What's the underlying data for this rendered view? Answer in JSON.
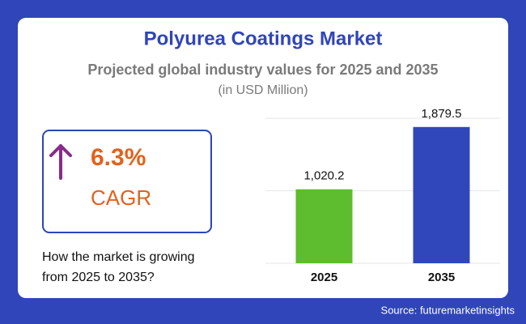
{
  "title": "Polyurea Coatings Market",
  "subtitle": "Projected global industry values for 2025 and 2035",
  "unit": "(in USD Million)",
  "cagr": {
    "value": "6.3%",
    "label": "CAGR"
  },
  "question": [
    "How the market is growing",
    "from 2025 to 2035?"
  ],
  "source": "Source: futuremarketinsights",
  "chart_data": {
    "type": "bar",
    "categories": [
      "2025",
      "2035"
    ],
    "values": [
      1020.2,
      1879.5
    ],
    "value_labels": [
      "1,020.2",
      "1,879.5"
    ],
    "colors": [
      "#5dbd2e",
      "#3047bb"
    ],
    "ylim": [
      0,
      2000
    ],
    "yticks": [
      0,
      1000,
      2000
    ],
    "grid": true
  }
}
